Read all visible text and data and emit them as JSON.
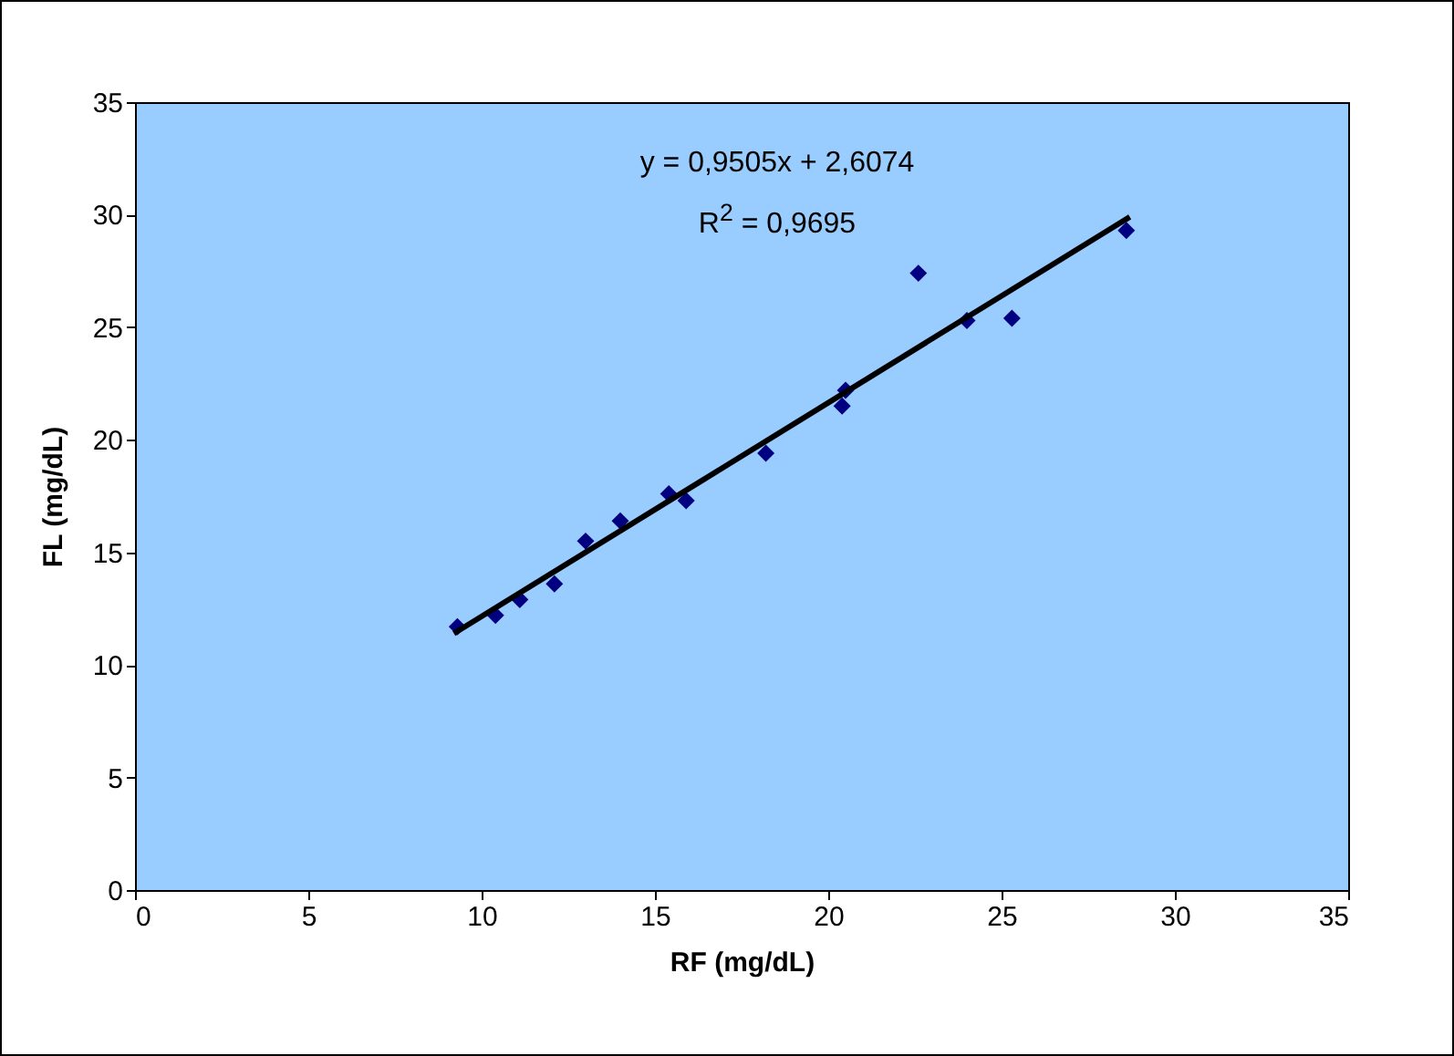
{
  "chart_data": {
    "type": "scatter",
    "xlabel": "RF (mg/dL)",
    "ylabel": "FL (mg/dL)",
    "annotations": [
      "y = 0,9505x + 2,6074",
      "R$^{2}$ = 0,9695"
    ],
    "xlim": [
      0,
      35
    ],
    "ylim": [
      0,
      35
    ],
    "xticks": [
      0,
      5,
      10,
      15,
      20,
      25,
      30,
      35
    ],
    "yticks": [
      0,
      5,
      10,
      15,
      20,
      25,
      30,
      35
    ],
    "grid": false,
    "series": [
      {
        "color": "#000080",
        "marker": "diamond",
        "x": [
          9.3,
          10.4,
          11.1,
          12.1,
          13.0,
          14.0,
          15.4,
          15.9,
          18.2,
          20.4,
          20.5,
          22.6,
          24.0,
          25.3,
          28.6
        ],
        "values": [
          11.7,
          12.2,
          12.9,
          13.6,
          15.5,
          16.4,
          17.6,
          17.3,
          19.4,
          21.5,
          22.2,
          27.4,
          25.3,
          25.4,
          29.3
        ]
      },
      {
        "type": "line",
        "color": "#000000",
        "x": [
          9.2,
          28.7
        ],
        "values": [
          11.4,
          29.9
        ],
        "line_style": "solid"
      }
    ]
  }
}
